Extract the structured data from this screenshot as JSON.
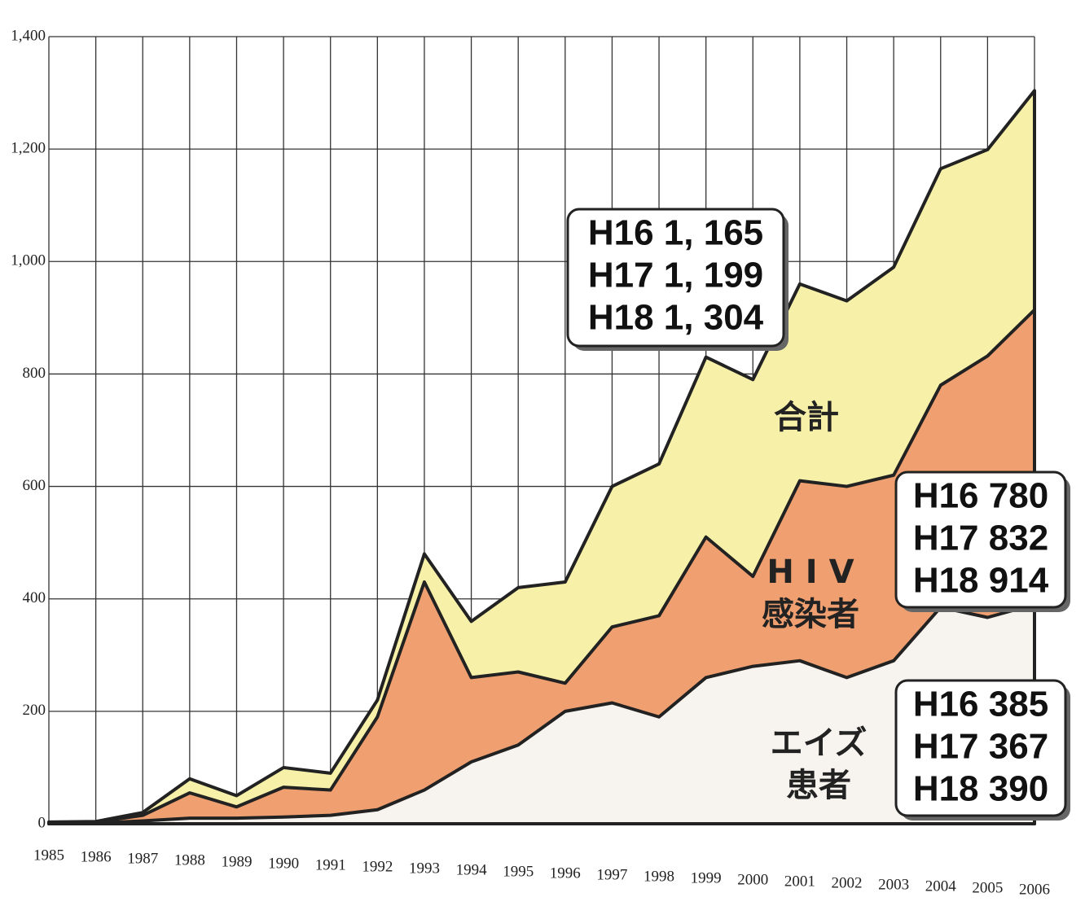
{
  "chart_data": {
    "type": "area",
    "categories": [
      "1985",
      "1986",
      "1987",
      "1988",
      "1989",
      "1990",
      "1991",
      "1992",
      "1993",
      "1994",
      "1995",
      "1996",
      "1997",
      "1998",
      "1999",
      "2000",
      "2001",
      "2002",
      "2003",
      "2004",
      "2005",
      "2006"
    ],
    "series": [
      {
        "name": [
          "合計"
        ],
        "color": "#f7f0a8",
        "values": [
          3,
          4,
          20,
          80,
          50,
          100,
          90,
          220,
          480,
          360,
          420,
          430,
          600,
          640,
          830,
          790,
          960,
          930,
          990,
          1165,
          1199,
          1304
        ],
        "box": [
          "H16  1, 165",
          "H17  1, 199",
          "H18  1, 304"
        ]
      },
      {
        "name": [
          "H I V",
          "感染者"
        ],
        "color": "#f0a070",
        "values": [
          2,
          3,
          15,
          55,
          30,
          65,
          60,
          190,
          430,
          260,
          270,
          250,
          350,
          370,
          510,
          440,
          610,
          600,
          620,
          780,
          832,
          914
        ],
        "box": [
          "H16  780",
          "H17  832",
          "H18  914"
        ]
      },
      {
        "name": [
          "エイズ",
          "患者"
        ],
        "color": "#f7f3ee",
        "values": [
          1,
          1,
          5,
          10,
          10,
          12,
          15,
          25,
          60,
          110,
          140,
          200,
          215,
          190,
          260,
          280,
          290,
          260,
          290,
          385,
          367,
          390
        ],
        "box": [
          "H16  385",
          "H17  367",
          "H18  390"
        ]
      }
    ],
    "ylim": [
      0,
      1400
    ],
    "yticks": [
      0,
      {
        "value": 200,
        "label": "200"
      },
      {
        "value": 400,
        "label": "400"
      },
      {
        "value": 600,
        "label": "600"
      },
      {
        "value": 800,
        "label": "800"
      },
      {
        "value": 1000,
        "label": "1,000"
      },
      {
        "value": 1200,
        "label": "1,200"
      },
      {
        "value": 1400,
        "label": "1,400"
      }
    ],
    "grid": true
  }
}
